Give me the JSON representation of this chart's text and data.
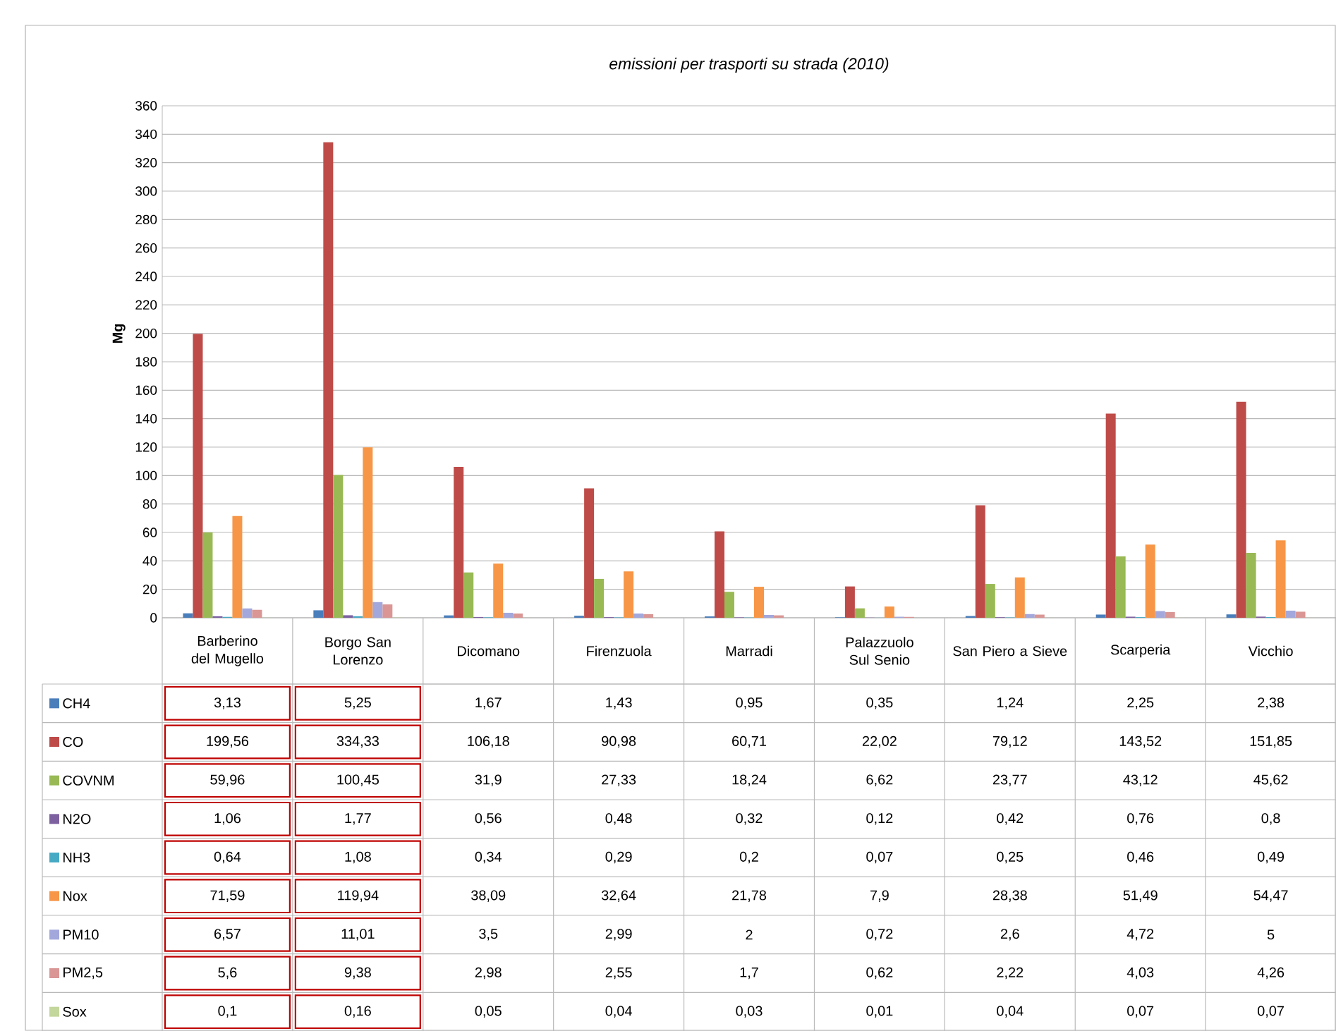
{
  "chart_data": {
    "type": "bar",
    "title": "emissioni per trasporti su strada (2010)",
    "ylabel": "Mg",
    "categories": [
      "Barberino del Mugello",
      "Borgo San Lorenzo",
      "Dicomano",
      "Firenzuola",
      "Marradi",
      "Palazzuolo Sul Senio",
      "San Piero a Sieve",
      "Scarperia",
      "Vicchio"
    ],
    "ylim": [
      0,
      360
    ],
    "yticks": [
      0,
      20,
      40,
      60,
      80,
      100,
      120,
      140,
      160,
      180,
      200,
      220,
      240,
      260,
      280,
      300,
      320,
      340,
      360
    ],
    "grid": "y",
    "legend": "bottom",
    "series": [
      {
        "name": "CH4",
        "color": "#4a7ebb",
        "values": [
          3.13,
          5.25,
          1.67,
          1.43,
          0.95,
          0.35,
          1.24,
          2.25,
          2.38
        ],
        "value_labels": [
          "3,13",
          "5,25",
          "1,67",
          "1,43",
          "0,95",
          "0,35",
          "1,24",
          "2,25",
          "2,38"
        ]
      },
      {
        "name": "CO",
        "color": "#be4b48",
        "values": [
          199.56,
          334.33,
          106.18,
          90.98,
          60.71,
          22.02,
          79.12,
          143.52,
          151.85
        ],
        "value_labels": [
          "199,56",
          "334,33",
          "106,18",
          "90,98",
          "60,71",
          "22,02",
          "79,12",
          "143,52",
          "151,85"
        ]
      },
      {
        "name": "COVNM",
        "color": "#98b954",
        "values": [
          59.96,
          100.45,
          31.9,
          27.33,
          18.24,
          6.62,
          23.77,
          43.12,
          45.62
        ],
        "value_labels": [
          "59,96",
          "100,45",
          "31,9",
          "27,33",
          "18,24",
          "6,62",
          "23,77",
          "43,12",
          "45,62"
        ]
      },
      {
        "name": "N2O",
        "color": "#7d60a0",
        "values": [
          1.06,
          1.77,
          0.56,
          0.48,
          0.32,
          0.12,
          0.42,
          0.76,
          0.8
        ],
        "value_labels": [
          "1,06",
          "1,77",
          "0,56",
          "0,48",
          "0,32",
          "0,12",
          "0,42",
          "0,76",
          "0,8"
        ]
      },
      {
        "name": "NH3",
        "color": "#46aac5",
        "values": [
          0.64,
          1.08,
          0.34,
          0.29,
          0.2,
          0.07,
          0.25,
          0.46,
          0.49
        ],
        "value_labels": [
          "0,64",
          "1,08",
          "0,34",
          "0,29",
          "0,2",
          "0,07",
          "0,25",
          "0,46",
          "0,49"
        ]
      },
      {
        "name": "Nox",
        "color": "#f79646",
        "values": [
          71.59,
          119.94,
          38.09,
          32.64,
          21.78,
          7.9,
          28.38,
          51.49,
          54.47
        ],
        "value_labels": [
          "71,59",
          "119,94",
          "38,09",
          "32,64",
          "21,78",
          "7,9",
          "28,38",
          "51,49",
          "54,47"
        ]
      },
      {
        "name": "PM10",
        "color": "#a2a8dc",
        "values": [
          6.57,
          11.01,
          3.5,
          2.99,
          2,
          0.72,
          2.6,
          4.72,
          5
        ],
        "value_labels": [
          "6,57",
          "11,01",
          "3,5",
          "2,99",
          "2",
          "0,72",
          "2,6",
          "4,72",
          "5"
        ]
      },
      {
        "name": "PM2,5",
        "color": "#d99694",
        "values": [
          5.6,
          9.38,
          2.98,
          2.55,
          1.7,
          0.62,
          2.22,
          4.03,
          4.26
        ],
        "value_labels": [
          "5,6",
          "9,38",
          "2,98",
          "2,55",
          "1,7",
          "0,62",
          "2,22",
          "4,03",
          "4,26"
        ]
      },
      {
        "name": "Sox",
        "color": "#c3d69b",
        "values": [
          0.1,
          0.16,
          0.05,
          0.04,
          0.03,
          0.01,
          0.04,
          0.07,
          0.07
        ],
        "value_labels": [
          "0,1",
          "0,16",
          "0,05",
          "0,04",
          "0,03",
          "0,01",
          "0,04",
          "0,07",
          "0,07"
        ]
      }
    ]
  }
}
